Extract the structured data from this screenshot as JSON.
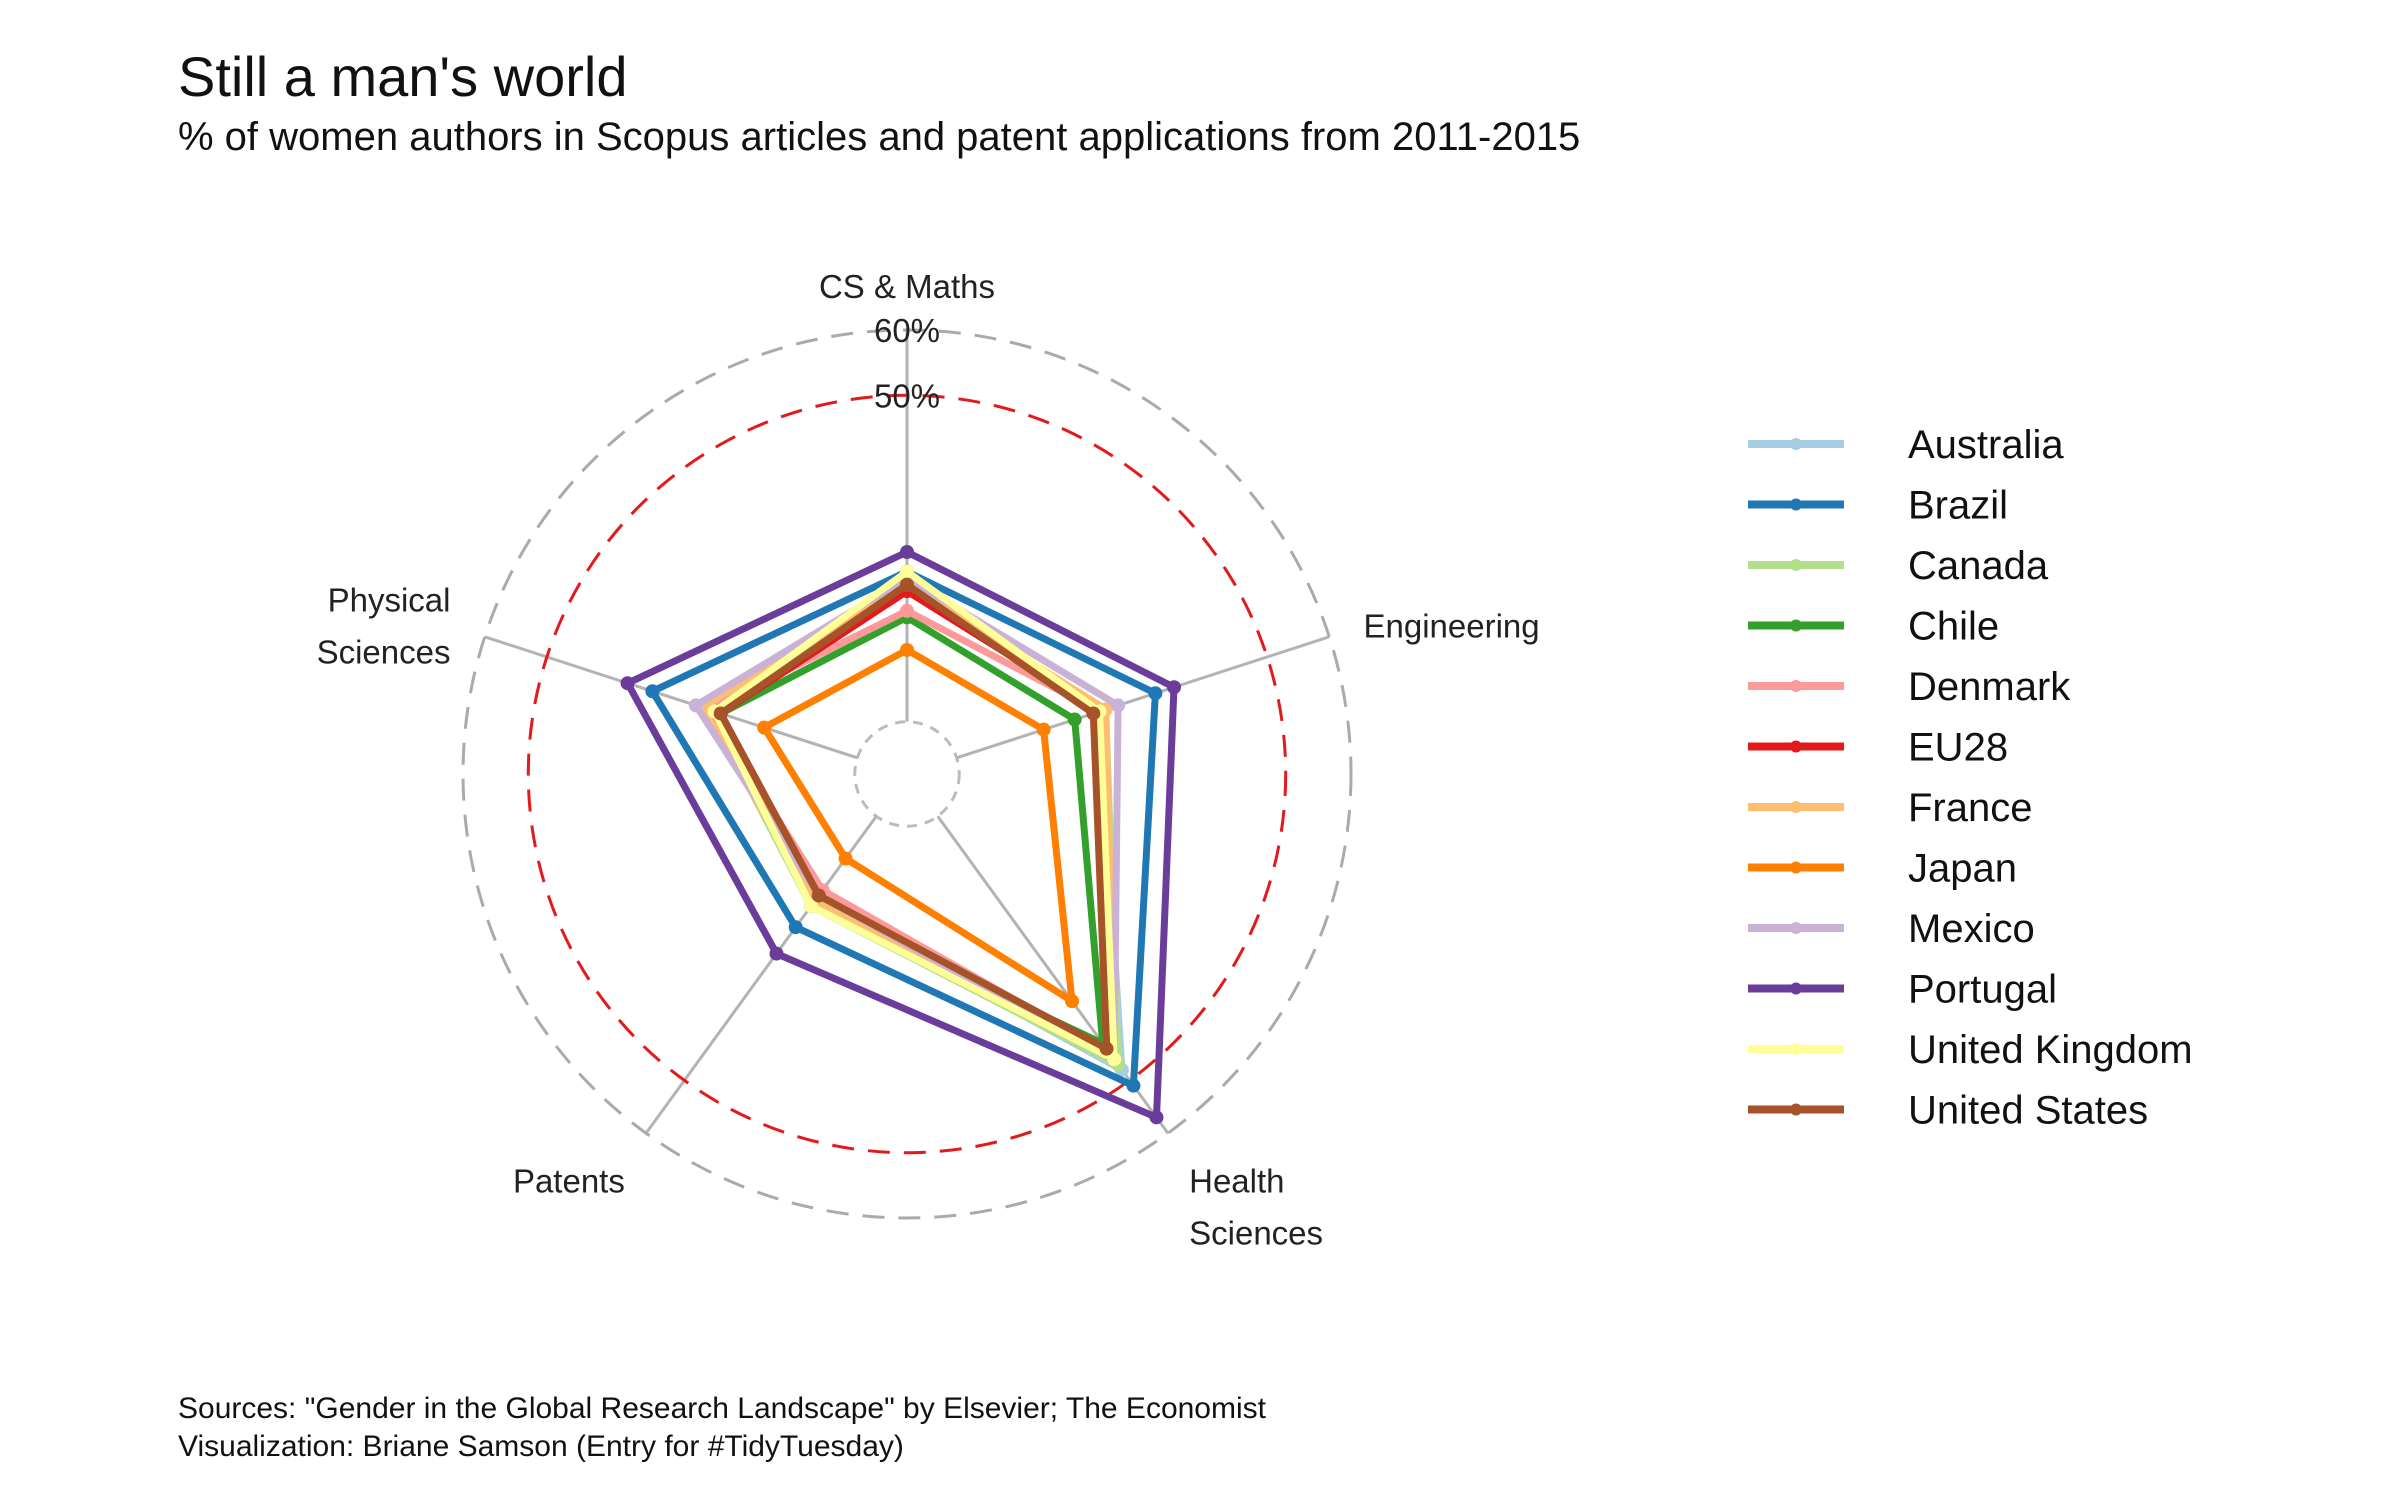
{
  "chart_data": {
    "type": "radar",
    "title": "Still a man's world",
    "subtitle": "% of women authors in Scopus articles and patent applications from 2011-2015",
    "axes": [
      "CS & Maths",
      "Engineering",
      "Health Sciences",
      "Patents",
      "Physical Sciences"
    ],
    "axis_labels": [
      [
        "CS & Maths"
      ],
      [
        "Engineering"
      ],
      [
        "Health",
        "Sciences"
      ],
      [
        "Patents"
      ],
      [
        "Physical",
        "Sciences"
      ]
    ],
    "ticks": [
      {
        "value": 50,
        "label": "50%",
        "color": "#e31a1c"
      },
      {
        "value": 60,
        "label": "60%",
        "color": "#aaaaaa"
      }
    ],
    "range": [
      -8,
      60
    ],
    "series": [
      {
        "name": "Australia",
        "color": "#a6cee3",
        "values": [
          22,
          23,
          48,
          16,
          24
        ]
      },
      {
        "name": "Brazil",
        "color": "#1f78b4",
        "values": [
          23,
          32,
          51,
          21,
          33
        ]
      },
      {
        "name": "Canada",
        "color": "#b2df8a",
        "values": [
          21,
          24,
          47,
          17,
          24
        ]
      },
      {
        "name": "Chile",
        "color": "#33a02c",
        "values": [
          16,
          19,
          43,
          17,
          22
        ]
      },
      {
        "name": "Denmark",
        "color": "#fb9a99",
        "values": [
          17,
          23,
          45,
          14,
          24
        ]
      },
      {
        "name": "EU28",
        "color": "#e31a1c",
        "values": [
          20,
          23,
          45,
          15,
          22
        ]
      },
      {
        "name": "France",
        "color": "#fdbf6f",
        "values": [
          21,
          24,
          46,
          16,
          25
        ]
      },
      {
        "name": "Japan",
        "color": "#ff7f00",
        "values": [
          11,
          14,
          35,
          8,
          15
        ]
      },
      {
        "name": "Mexico",
        "color": "#cab2d6",
        "values": [
          22,
          26,
          46,
          15,
          26
        ]
      },
      {
        "name": "Portugal",
        "color": "#6a3d9a",
        "values": [
          26,
          35,
          57,
          26,
          37
        ]
      },
      {
        "name": "United Kingdom",
        "color": "#ffff99",
        "values": [
          23,
          23,
          46,
          17,
          23
        ]
      },
      {
        "name": "United States",
        "color": "#a6532a",
        "values": [
          21,
          22,
          44,
          15,
          22
        ]
      }
    ]
  },
  "caption": [
    "Sources: \"Gender in the Global Research Landscape\" by Elsevier; The Economist",
    "Visualization: Briane Samson (Entry for #TidyTuesday)"
  ]
}
